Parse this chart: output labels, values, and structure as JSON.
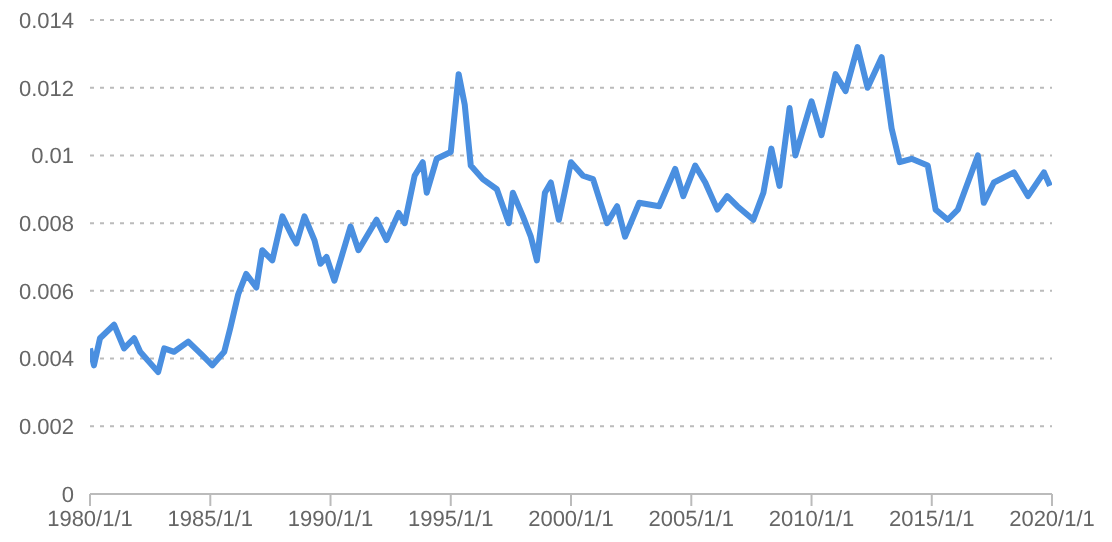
{
  "chart_data": {
    "type": "line",
    "grid": "y",
    "marker": "none",
    "line_style": "solid",
    "xlim": [
      "1980-01-01",
      "2020-01-01"
    ],
    "xticks": [
      {
        "value": "1980-01-01",
        "label": "1980/1/1"
      },
      {
        "value": "1985-01-01",
        "label": "1985/1/1"
      },
      {
        "value": "1990-01-01",
        "label": "1990/1/1"
      },
      {
        "value": "1995-01-01",
        "label": "1995/1/1"
      },
      {
        "value": "2000-01-01",
        "label": "2000/1/1"
      },
      {
        "value": "2005-01-01",
        "label": "2005/1/1"
      },
      {
        "value": "2010-01-01",
        "label": "2010/1/1"
      },
      {
        "value": "2015-01-01",
        "label": "2015/1/1"
      },
      {
        "value": "2020-01-01",
        "label": "2020/1/1"
      }
    ],
    "ylim": [
      0,
      0.014
    ],
    "yticks": [
      0,
      0.002,
      0.004,
      0.006,
      0.008,
      0.01,
      0.012,
      0.014
    ],
    "x": [
      "1980-01",
      "1980-03",
      "1980-06",
      "1981-01",
      "1981-06",
      "1981-11",
      "1982-02",
      "1982-11",
      "1983-02",
      "1983-07",
      "1984-02",
      "1984-09",
      "1985-02",
      "1985-08",
      "1985-11",
      "1986-03",
      "1986-07",
      "1986-12",
      "1987-03",
      "1987-08",
      "1988-01",
      "1988-06",
      "1988-08",
      "1988-12",
      "1989-05",
      "1989-08",
      "1989-11",
      "1990-03",
      "1990-11",
      "1991-03",
      "1991-12",
      "1992-05",
      "1992-11",
      "1993-02",
      "1993-07",
      "1993-11",
      "1994-01",
      "1994-06",
      "1995-01",
      "1995-05",
      "1995-08",
      "1995-11",
      "1996-05",
      "1996-12",
      "1997-06",
      "1997-08",
      "1998-01",
      "1998-05",
      "1998-08",
      "1998-12",
      "1999-03",
      "1999-07",
      "2000-01",
      "2000-07",
      "2000-12",
      "2001-07",
      "2001-12",
      "2002-04",
      "2002-11",
      "2003-09",
      "2004-05",
      "2004-09",
      "2005-03",
      "2005-08",
      "2006-02",
      "2006-07",
      "2006-12",
      "2007-08",
      "2008-01",
      "2008-05",
      "2008-09",
      "2009-02",
      "2009-05",
      "2010-01",
      "2010-06",
      "2011-01",
      "2011-06",
      "2011-12",
      "2012-05",
      "2012-12",
      "2013-05",
      "2013-09",
      "2014-03",
      "2014-11",
      "2015-03",
      "2015-09",
      "2016-02",
      "2016-12",
      "2017-03",
      "2017-08",
      "2018-06",
      "2019-01",
      "2019-09",
      "2019-12"
    ],
    "series": [
      {
        "color": "#4a8fe0",
        "values": [
          0.0043,
          0.0038,
          0.0046,
          0.005,
          0.0043,
          0.0046,
          0.0042,
          0.0036,
          0.0043,
          0.0042,
          0.0045,
          0.0041,
          0.0038,
          0.0042,
          0.0049,
          0.0059,
          0.0065,
          0.0061,
          0.0072,
          0.0069,
          0.0082,
          0.0076,
          0.0074,
          0.0082,
          0.0075,
          0.0068,
          0.007,
          0.0063,
          0.0079,
          0.0072,
          0.0081,
          0.0075,
          0.0083,
          0.008,
          0.0094,
          0.0098,
          0.0089,
          0.0099,
          0.0101,
          0.0124,
          0.0115,
          0.0097,
          0.0093,
          0.009,
          0.008,
          0.0089,
          0.0082,
          0.0076,
          0.0069,
          0.0089,
          0.0092,
          0.0081,
          0.0098,
          0.0094,
          0.0093,
          0.008,
          0.0085,
          0.0076,
          0.0086,
          0.0085,
          0.0096,
          0.0088,
          0.0097,
          0.0092,
          0.0084,
          0.0088,
          0.0085,
          0.0081,
          0.0089,
          0.0102,
          0.0091,
          0.0114,
          0.01,
          0.0116,
          0.0106,
          0.0124,
          0.0119,
          0.0132,
          0.012,
          0.0129,
          0.0108,
          0.0098,
          0.0099,
          0.0097,
          0.0084,
          0.0081,
          0.0084,
          0.01,
          0.0086,
          0.0092,
          0.0095,
          0.0088,
          0.0095,
          0.0091
        ]
      }
    ]
  }
}
